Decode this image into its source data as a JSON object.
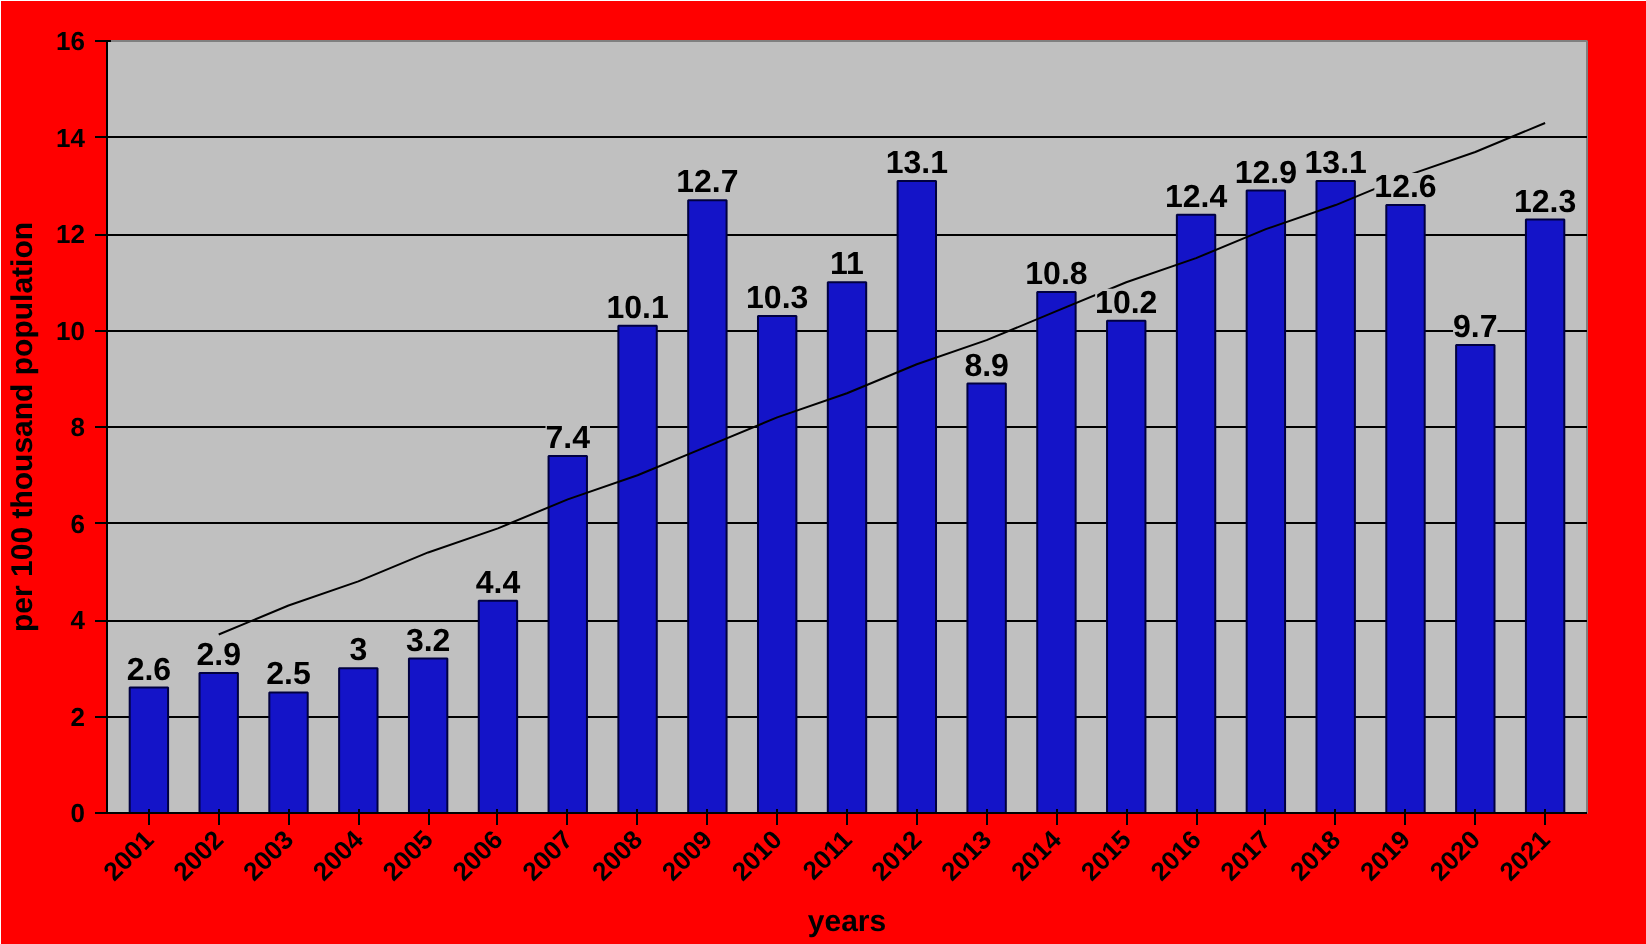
{
  "chart_data": {
    "type": "bar",
    "xlabel": "years",
    "ylabel": "per 100 thousand population",
    "categories": [
      "2001",
      "2002",
      "2003",
      "2004",
      "2005",
      "2006",
      "2007",
      "2008",
      "2009",
      "2010",
      "2011",
      "2012",
      "2013",
      "2014",
      "2015",
      "2016",
      "2017",
      "2018",
      "2019",
      "2020",
      "2021"
    ],
    "series": [
      {
        "color": "#1414c8",
        "values": [
          2.6,
          2.9,
          2.5,
          3,
          3.2,
          4.4,
          7.4,
          10.1,
          12.7,
          10.3,
          11,
          13.1,
          8.9,
          10.8,
          10.2,
          12.4,
          12.9,
          13.1,
          12.6,
          9.7,
          12.3
        ],
        "value_labels": [
          "2.6",
          "2.9",
          "2.5",
          "3",
          "3.2",
          "4.4",
          "7.4",
          "10.1",
          "12.7",
          "10.3",
          "11",
          "13.1",
          "8.9",
          "10.8",
          "10.2",
          "12.4",
          "12.9",
          "13.1",
          "12.6",
          "9.7",
          "12.3"
        ]
      },
      {
        "type": "line",
        "color": "#000000",
        "values": [
          null,
          3.7,
          4.3,
          4.8,
          5.4,
          5.9,
          6.5,
          7.0,
          7.6,
          8.2,
          8.7,
          9.3,
          9.8,
          10.4,
          11.0,
          11.5,
          12.1,
          12.6,
          13.2,
          13.7,
          14.3
        ]
      }
    ],
    "ylim": [
      0,
      16
    ],
    "yticks": [
      0,
      2,
      4,
      6,
      8,
      10,
      12,
      14,
      16
    ],
    "grid": "y"
  }
}
